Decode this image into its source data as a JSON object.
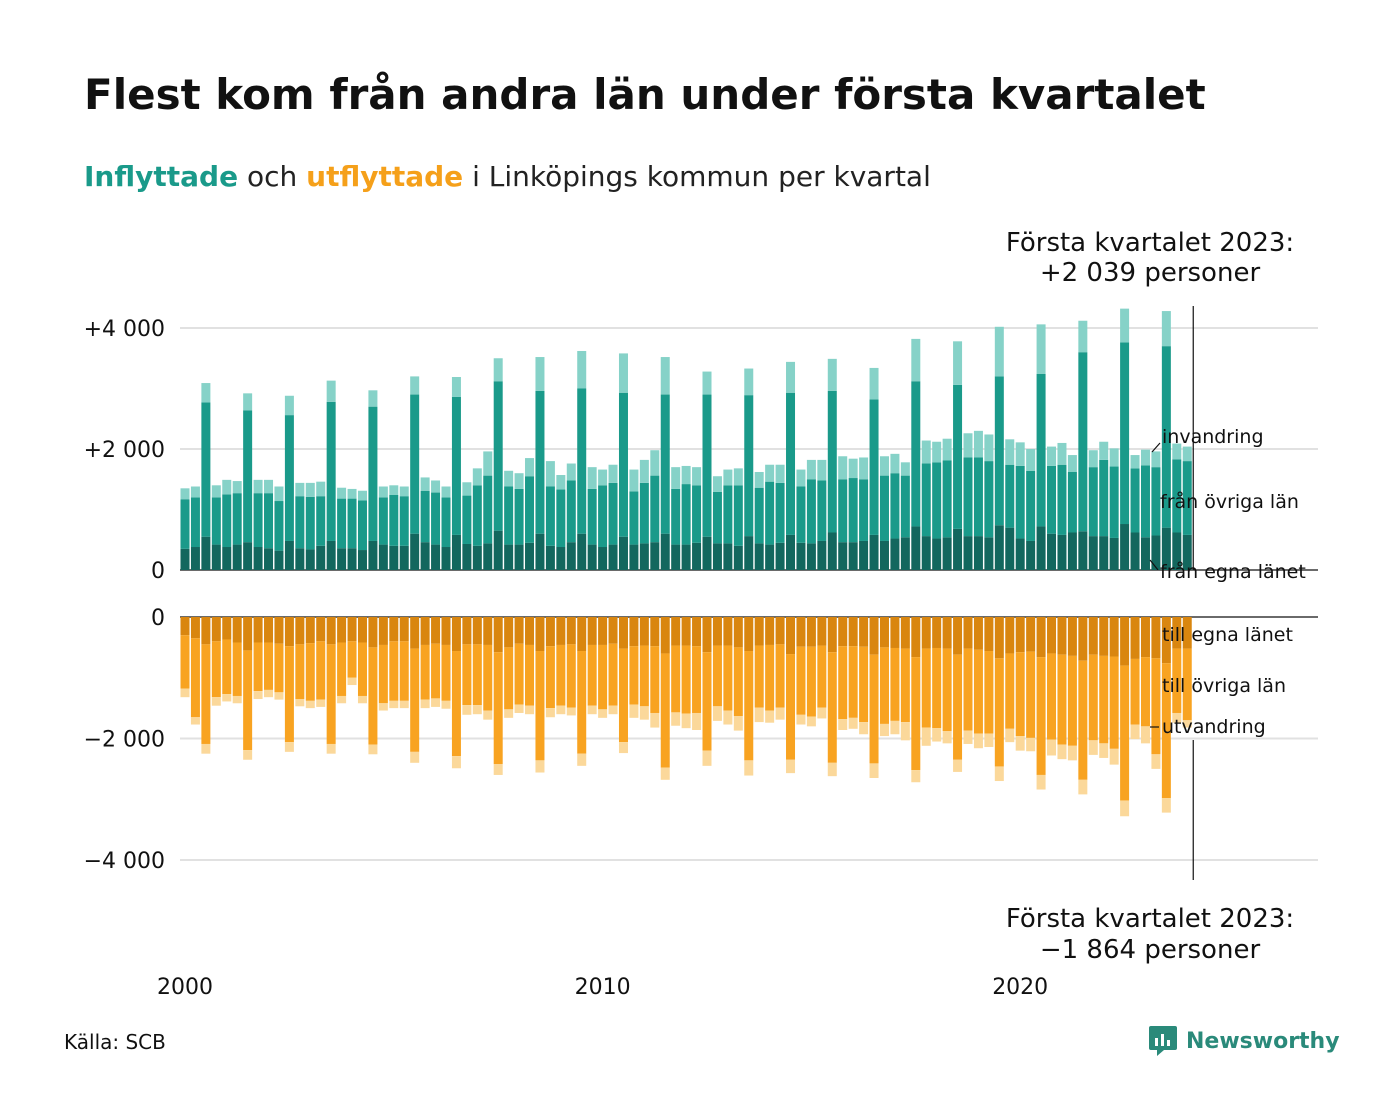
{
  "title": "Flest kom från andra län under första kvartalet",
  "subtitle": {
    "part1": "Inflyttade",
    "part2": " och ",
    "part3": "utflyttade",
    "part4": " i Linköpings kommun per kvartal"
  },
  "annotation_top": [
    "Första kvartalet 2023:",
    "+2 039 personer"
  ],
  "annotation_bottom": [
    "Första kvartalet 2023:",
    "−1 864 personer"
  ],
  "source": "Källa: SCB",
  "logo_text": "Newsworthy",
  "colors": {
    "in_own": "#13675e",
    "in_other": "#1a9a8a",
    "in_imm": "#86d2c8",
    "out_own": "#d9860f",
    "out_other": "#f8a321",
    "out_emi": "#fbd89a",
    "grid": "#e1e1e1"
  },
  "chart_data": {
    "type": "bar",
    "stacked": true,
    "diverging": true,
    "x_tick_labels": [
      "2000",
      "2010",
      "2020"
    ],
    "y_upper_ticks": [
      "+4 000",
      "+2 000",
      "0"
    ],
    "y_lower_ticks": [
      "0",
      "−2 000",
      "−4 000"
    ],
    "upper_ylim": [
      0,
      4000
    ],
    "lower_ylim": [
      -4000,
      0
    ],
    "series_labels": {
      "in_imm": "invandring",
      "in_other": "från övriga län",
      "in_own": "från egna länet",
      "out_own": "till egna länet",
      "out_other": "till övriga län",
      "out_emi": "utvandring"
    },
    "quarter_pattern": [
      "Q1",
      "Q2",
      "Q3",
      "Q4"
    ],
    "quarters_start": "2000 Q1",
    "in_own": [
      350,
      380,
      550,
      420,
      380,
      420,
      460,
      380,
      360,
      320,
      480,
      360,
      340,
      400,
      480,
      360,
      360,
      330,
      480,
      420,
      400,
      400,
      600,
      460,
      420,
      380,
      580,
      430,
      400,
      440,
      650,
      420,
      420,
      450,
      600,
      400,
      380,
      460,
      600,
      420,
      380,
      420,
      550,
      420,
      440,
      460,
      600,
      420,
      420,
      450,
      550,
      440,
      440,
      400,
      560,
      440,
      420,
      450,
      580,
      450,
      440,
      480,
      620,
      460,
      460,
      480,
      580,
      480,
      520,
      540,
      720,
      560,
      520,
      540,
      680,
      560,
      560,
      540,
      740,
      700,
      520,
      480,
      720,
      600,
      580,
      620,
      640,
      560,
      560,
      530,
      760,
      620,
      540,
      570,
      700,
      620,
      580
    ],
    "in_other": [
      820,
      820,
      2220,
      780,
      870,
      850,
      2180,
      890,
      910,
      820,
      2080,
      860,
      870,
      820,
      2300,
      820,
      820,
      820,
      2220,
      780,
      840,
      820,
      2300,
      850,
      860,
      820,
      2280,
      800,
      1000,
      1120,
      2470,
      960,
      920,
      1100,
      2360,
      980,
      950,
      1020,
      2400,
      920,
      1020,
      1020,
      2380,
      880,
      1000,
      1100,
      2300,
      920,
      1000,
      950,
      2350,
      850,
      960,
      1000,
      2330,
      920,
      1040,
      990,
      2350,
      930,
      1060,
      1000,
      2340,
      1040,
      1060,
      1020,
      2240,
      1080,
      1080,
      1020,
      2400,
      1200,
      1260,
      1270,
      2380,
      1300,
      1300,
      1260,
      2460,
      1040,
      1200,
      1160,
      2520,
      1120,
      1160,
      1000,
      2960,
      1140,
      1260,
      1180,
      3000,
      1060,
      1190,
      1130,
      3000,
      1210,
      1220
    ],
    "in_imm": [
      180,
      180,
      320,
      200,
      240,
      200,
      280,
      220,
      220,
      240,
      320,
      220,
      230,
      240,
      350,
      180,
      160,
      160,
      270,
      180,
      160,
      160,
      300,
      220,
      200,
      180,
      330,
      220,
      280,
      400,
      380,
      260,
      260,
      300,
      560,
      420,
      240,
      280,
      620,
      360,
      260,
      300,
      650,
      360,
      380,
      420,
      620,
      360,
      300,
      300,
      380,
      260,
      260,
      280,
      440,
      260,
      280,
      300,
      510,
      280,
      320,
      340,
      530,
      380,
      320,
      360,
      520,
      320,
      320,
      220,
      700,
      380,
      340,
      360,
      720,
      400,
      440,
      440,
      820,
      420,
      390,
      360,
      820,
      320,
      360,
      280,
      520,
      280,
      300,
      300,
      560,
      220,
      260,
      260,
      580,
      260,
      240
    ],
    "out_own": [
      300,
      350,
      450,
      400,
      370,
      420,
      550,
      420,
      420,
      440,
      480,
      450,
      430,
      400,
      450,
      420,
      400,
      420,
      500,
      460,
      400,
      400,
      520,
      460,
      440,
      460,
      560,
      450,
      450,
      460,
      580,
      500,
      440,
      460,
      560,
      480,
      460,
      450,
      560,
      460,
      460,
      440,
      520,
      480,
      470,
      480,
      600,
      470,
      470,
      480,
      580,
      470,
      470,
      500,
      560,
      470,
      460,
      450,
      610,
      490,
      490,
      470,
      580,
      480,
      480,
      490,
      620,
      500,
      510,
      520,
      660,
      520,
      510,
      520,
      620,
      520,
      540,
      560,
      680,
      600,
      580,
      570,
      660,
      600,
      620,
      640,
      720,
      620,
      640,
      650,
      800,
      690,
      660,
      680,
      760,
      520,
      520
    ],
    "out_other": [
      880,
      1300,
      1640,
      920,
      900,
      880,
      1640,
      800,
      780,
      800,
      1580,
      900,
      950,
      960,
      1640,
      880,
      600,
      880,
      1600,
      960,
      980,
      980,
      1700,
      900,
      900,
      920,
      1730,
      1000,
      1000,
      1080,
      1840,
      1020,
      1000,
      1000,
      1800,
      1020,
      1000,
      1040,
      1690,
      1000,
      1060,
      1020,
      1540,
      960,
      1000,
      1100,
      1880,
      1100,
      1120,
      1100,
      1620,
      1000,
      1070,
      1130,
      1800,
      1020,
      1080,
      1040,
      1740,
      1120,
      1150,
      1020,
      1820,
      1200,
      1180,
      1240,
      1790,
      1260,
      1200,
      1210,
      1860,
      1300,
      1320,
      1360,
      1730,
      1350,
      1380,
      1360,
      1780,
      1240,
      1380,
      1420,
      1940,
      1420,
      1480,
      1480,
      1960,
      1410,
      1440,
      1520,
      2220,
      1080,
      1140,
      1580,
      2220,
      1060,
      1180
    ],
    "out_emi": [
      140,
      120,
      160,
      140,
      120,
      120,
      160,
      130,
      120,
      120,
      160,
      120,
      120,
      120,
      160,
      120,
      120,
      120,
      160,
      120,
      120,
      120,
      180,
      140,
      140,
      130,
      200,
      160,
      150,
      150,
      180,
      140,
      140,
      140,
      200,
      150,
      140,
      130,
      200,
      140,
      140,
      140,
      180,
      220,
      220,
      240,
      200,
      220,
      240,
      280,
      250,
      240,
      230,
      240,
      250,
      240,
      200,
      200,
      220,
      160,
      160,
      180,
      220,
      180,
      180,
      200,
      240,
      200,
      220,
      300,
      200,
      300,
      220,
      200,
      200,
      220,
      240,
      220,
      240,
      220,
      240,
      220,
      240,
      260,
      240,
      240,
      240,
      240,
      240,
      260,
      260,
      240,
      280,
      240,
      240,
      160,
      120
    ]
  }
}
